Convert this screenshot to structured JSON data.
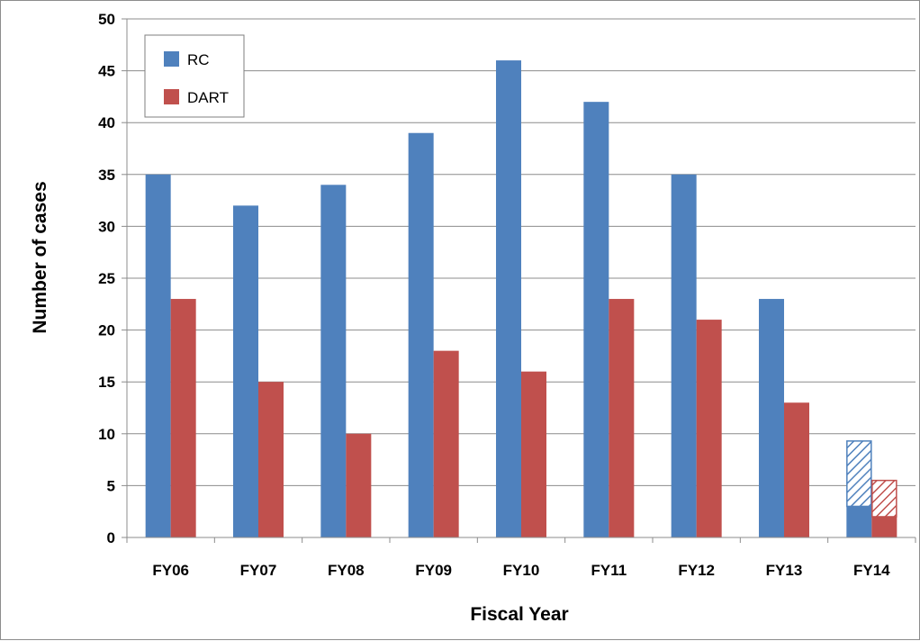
{
  "chart_data": {
    "type": "bar",
    "categories": [
      "FY06",
      "FY07",
      "FY08",
      "FY09",
      "FY10",
      "FY11",
      "FY12",
      "FY13",
      "FY14"
    ],
    "series": [
      {
        "name": "RC",
        "color": "#4f81bd",
        "values": [
          35,
          32,
          34,
          39,
          46,
          42,
          35,
          23,
          3
        ],
        "hatched_extension": [
          0,
          0,
          0,
          0,
          0,
          0,
          0,
          0,
          6.3
        ]
      },
      {
        "name": "DART",
        "color": "#c0504d",
        "values": [
          23,
          15,
          10,
          18,
          16,
          23,
          21,
          13,
          2
        ],
        "hatched_extension": [
          0,
          0,
          0,
          0,
          0,
          0,
          0,
          0,
          3.5
        ]
      }
    ],
    "xlabel": "Fiscal Year",
    "ylabel": "Number of cases",
    "ylim": [
      0,
      50
    ],
    "yticks": [
      "0",
      "5",
      "10",
      "15",
      "20",
      "25",
      "30",
      "35",
      "40",
      "45",
      "50"
    ],
    "grid": true,
    "legend_position": "top-left"
  }
}
